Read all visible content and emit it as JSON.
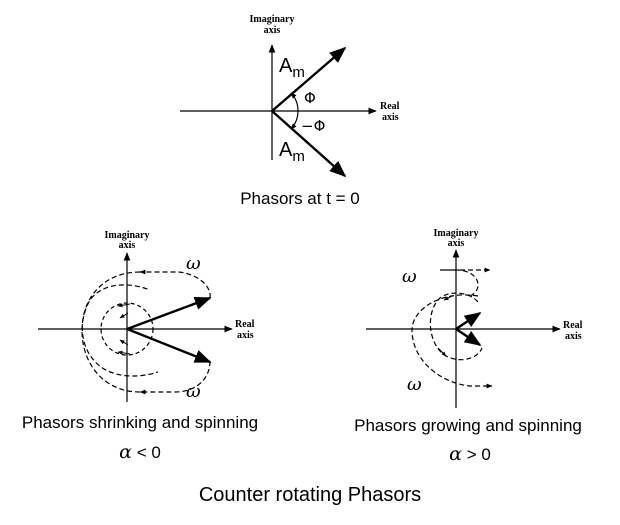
{
  "top": {
    "imag_axis": [
      "Imaginary",
      "axis"
    ],
    "real_axis": [
      "Real",
      "axis"
    ],
    "phasor_upper_label": "A",
    "phasor_upper_sub": "m",
    "phasor_lower_label": "A",
    "phasor_lower_sub": "m",
    "angle_pos": "Φ",
    "angle_neg": "−Φ",
    "caption": "Phasors at t = 0"
  },
  "left": {
    "imag_axis": [
      "Imaginary",
      "axis"
    ],
    "real_axis": [
      "Real",
      "axis"
    ],
    "omega_top": "ω",
    "omega_bottom": "ω",
    "caption": "Phasors shrinking and spinning",
    "condition_symbol": "α",
    "condition_text": " < 0"
  },
  "right": {
    "imag_axis": [
      "Imaginary",
      "axis"
    ],
    "real_axis": [
      "Real",
      "axis"
    ],
    "omega_top": "ω",
    "omega_bottom": "ω",
    "caption": "Phasors growing and spinning",
    "condition_symbol": "α",
    "condition_text": " > 0"
  },
  "title": "Counter rotating Phasors"
}
